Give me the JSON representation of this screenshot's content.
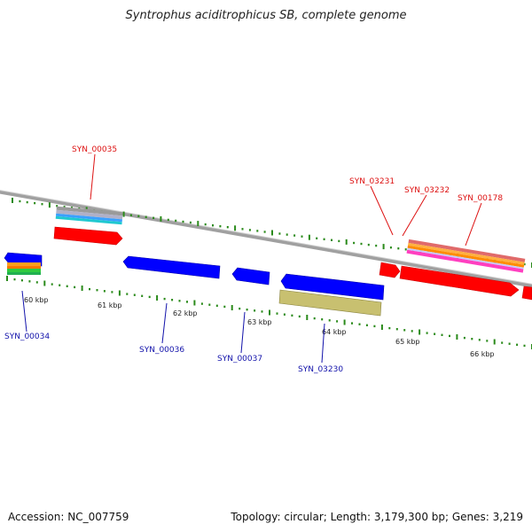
{
  "title": "Syntrophus aciditrophicus SB, complete genome",
  "footer": {
    "accession": "Accession: NC_007759",
    "stats": "Topology: circular; Length: 3,179,300 bp; Genes: 3,219"
  },
  "colors": {
    "backbone": "#8a8a8a",
    "tick": "#2a8a1a",
    "forward_label": "#dd1111",
    "reverse_label": "#1111aa",
    "forward_gene": "#ff0000",
    "reverse_gene": "#0000ff"
  },
  "scale_labels": [
    "60 kbp",
    "61 kbp",
    "62 kbp",
    "63 kbp",
    "64 kbp",
    "65 kbp",
    "66 kbp"
  ],
  "forward_genes": [
    {
      "label": "SYN_00035",
      "feature_tracks": [
        "#a0a0a0",
        "#b0b0c8",
        "#3aa0ff",
        "#20c8d0"
      ]
    },
    {
      "label": "SYN_03231",
      "feature_tracks": []
    },
    {
      "label": "SYN_03232",
      "feature_tracks": []
    },
    {
      "label": "SYN_00178",
      "feature_tracks": [
        "#e06a6a",
        "#ffb040",
        "#ff8c00",
        "#c8c8ff",
        "#ff3fc0"
      ]
    }
  ],
  "reverse_genes": [
    {
      "label": "SYN_00034",
      "feature_tracks": [
        "#ffa020",
        "#ff7a00",
        "#2ecc40",
        "#20b050"
      ]
    },
    {
      "label": "SYN_00036",
      "feature_tracks": []
    },
    {
      "label": "SYN_00037",
      "feature_tracks": []
    },
    {
      "label": "SYN_03230",
      "feature_tracks": [
        "#c8c070"
      ]
    }
  ]
}
